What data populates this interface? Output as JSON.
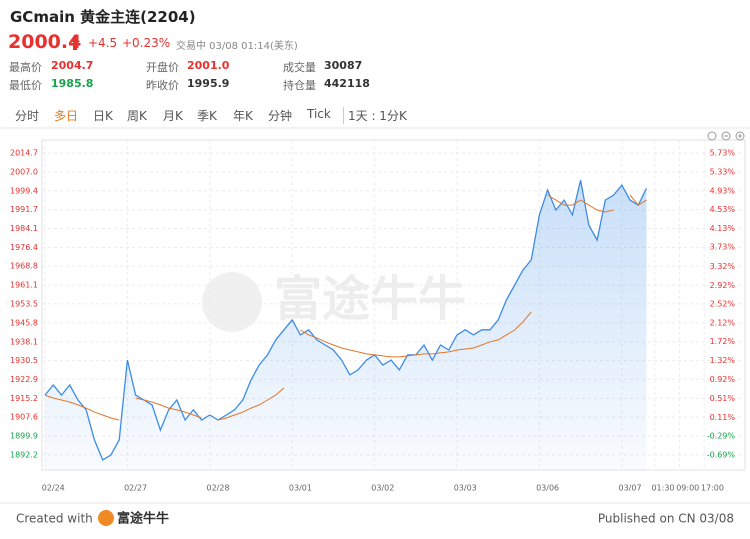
{
  "header": {
    "title": "GCmain 黄金主连(2204)",
    "price": "2000.4",
    "change": "+4.5",
    "change_pct": "+0.23%",
    "status": "交易中 03/08 01:14(美东)"
  },
  "stats": [
    {
      "label": "最高价",
      "value": "2004.7"
    },
    {
      "label": "开盘价",
      "value": "2001.0"
    },
    {
      "label": "成交量",
      "value": "30087"
    },
    {
      "label": "最低价",
      "value": "1985.8"
    },
    {
      "label": "昨收价",
      "value": "1995.9"
    },
    {
      "label": "持仓量",
      "value": "442118"
    }
  ],
  "tabs": [
    "分时",
    "多日",
    "日K",
    "周K",
    "月K",
    "季K",
    "年K",
    "分钟",
    "Tick",
    "1天 : 1分K"
  ],
  "watermark": "富途牛牛",
  "footer": {
    "created": "Created with",
    "brand": "富途牛牛",
    "published": "Published on CN 03/08"
  },
  "chart_data": {
    "type": "line",
    "categories": [
      null,
      "02/24",
      null,
      null,
      null,
      null,
      null,
      null,
      null,
      null,
      null,
      "02/27",
      null,
      null,
      null,
      null,
      null,
      null,
      null,
      null,
      null,
      "02/28",
      null,
      null,
      null,
      null,
      null,
      null,
      null,
      null,
      null,
      "03/01",
      null,
      null,
      null,
      null,
      null,
      null,
      null,
      null,
      null,
      "03/02",
      null,
      null,
      null,
      null,
      null,
      null,
      null,
      null,
      null,
      "03/03",
      null,
      null,
      null,
      null,
      null,
      null,
      null,
      null,
      null,
      "03/06",
      null,
      null,
      null,
      null,
      null,
      null,
      null,
      null,
      null,
      "03/07",
      null,
      null,
      null,
      "01:30",
      null,
      null,
      "09:00",
      null,
      null,
      "17:00",
      null,
      null,
      null
    ],
    "series": [
      {
        "color": "#3b8be8",
        "area": true,
        "values": [
          1916.5,
          1920.6,
          1916.5,
          1920.6,
          1914.5,
          1910.5,
          1898.3,
          1890.2,
          1892.2,
          1898.3,
          1930.7,
          1916.5,
          1914.5,
          1912.5,
          1902.3,
          1910.5,
          1914.5,
          1906.4,
          1910.5,
          1906.4,
          1908.4,
          1906.4,
          1908.4,
          1910.5,
          1914.5,
          1922.6,
          1928.7,
          1932.8,
          1938.9,
          1943.0,
          1947.0,
          1940.9,
          1943.0,
          1938.9,
          1936.8,
          1934.8,
          1930.7,
          1924.7,
          1926.7,
          1930.7,
          1932.8,
          1928.7,
          1930.7,
          1926.7,
          1932.8,
          1932.8,
          1936.8,
          1930.7,
          1936.8,
          1934.8,
          1940.9,
          1943.0,
          1940.9,
          1943.0,
          1943.0,
          1947.0,
          1955.1,
          1961.2,
          1967.2,
          1971.3,
          1989.6,
          1999.7,
          1991.6,
          1995.6,
          1989.6,
          2003.7,
          1985.5,
          1979.4,
          1995.6,
          1997.7,
          2001.7,
          1995.6,
          1993.6,
          2000.4,
          null,
          null,
          null,
          null,
          null,
          null,
          null,
          null,
          null,
          null,
          null
        ]
      },
      {
        "color": "#e0762a",
        "area": false,
        "values": [
          1916.5,
          1915.3,
          1914.5,
          1913.7,
          1912.5,
          1911.2,
          1909.6,
          1908.4,
          1907.2,
          1906.4,
          null,
          1915.3,
          1914.5,
          1913.7,
          1912.5,
          1911.2,
          1910.5,
          1909.6,
          1908.4,
          1907.2,
          null,
          1906.4,
          1907.2,
          1908.4,
          1909.6,
          1911.2,
          1912.5,
          1914.5,
          1916.5,
          1919.4,
          null,
          1942.9,
          1940.9,
          1939.7,
          1938.1,
          1936.8,
          1935.6,
          1934.8,
          1934.0,
          1933.2,
          1932.8,
          1932.4,
          1932.0,
          1932.0,
          1932.4,
          1932.8,
          1933.2,
          1933.2,
          1933.6,
          1934.0,
          1934.8,
          1935.2,
          1935.6,
          1936.8,
          1938.1,
          1938.9,
          1940.9,
          1942.9,
          1946.2,
          1950.2,
          null,
          1997.7,
          1995.6,
          1993.6,
          1993.6,
          1995.6,
          1993.6,
          1991.6,
          1990.8,
          1991.6,
          null,
          1997.7,
          1993.6,
          1995.6,
          null,
          null,
          null,
          null,
          null,
          null,
          null,
          null,
          null,
          null,
          null
        ]
      }
    ],
    "ylim": [
      1886.1,
      2020.0
    ],
    "yticks": [
      2014.7,
      {
        "value": 2007,
        "label": "2007.0"
      },
      1999.4,
      1991.7,
      1984.1,
      1976.4,
      1968.8,
      1961.1,
      1953.5,
      1945.8,
      1938.1,
      1930.5,
      1922.9,
      1915.2,
      1907.6,
      1899.9,
      1892.2
    ],
    "y2lim": [
      -1.01,
      6.01
    ],
    "y2ticks": [
      {
        "value": 5.73,
        "label": "5.73%"
      },
      {
        "value": 5.33,
        "label": "5.33%"
      },
      {
        "value": 4.93,
        "label": "4.93%"
      },
      {
        "value": 4.53,
        "label": "4.53%"
      },
      {
        "value": 4.13,
        "label": "4.13%"
      },
      {
        "value": 3.73,
        "label": "3.73%"
      },
      {
        "value": 3.32,
        "label": "3.32%"
      },
      {
        "value": 2.92,
        "label": "2.92%"
      },
      {
        "value": 2.52,
        "label": "2.52%"
      },
      {
        "value": 2.12,
        "label": "2.12%"
      },
      {
        "value": 1.72,
        "label": "1.72%"
      },
      {
        "value": 1.32,
        "label": "1.32%"
      },
      {
        "value": 0.92,
        "label": "0.92%"
      },
      {
        "value": 0.51,
        "label": "0.51%"
      },
      {
        "value": 0.11,
        "label": "0.11%"
      },
      {
        "value": -0.29,
        "label": "-0.29%"
      },
      {
        "value": -0.69,
        "label": "-0.69%"
      }
    ],
    "grid": true,
    "up_color": "#e8312f",
    "down_color": "#16a34a"
  }
}
